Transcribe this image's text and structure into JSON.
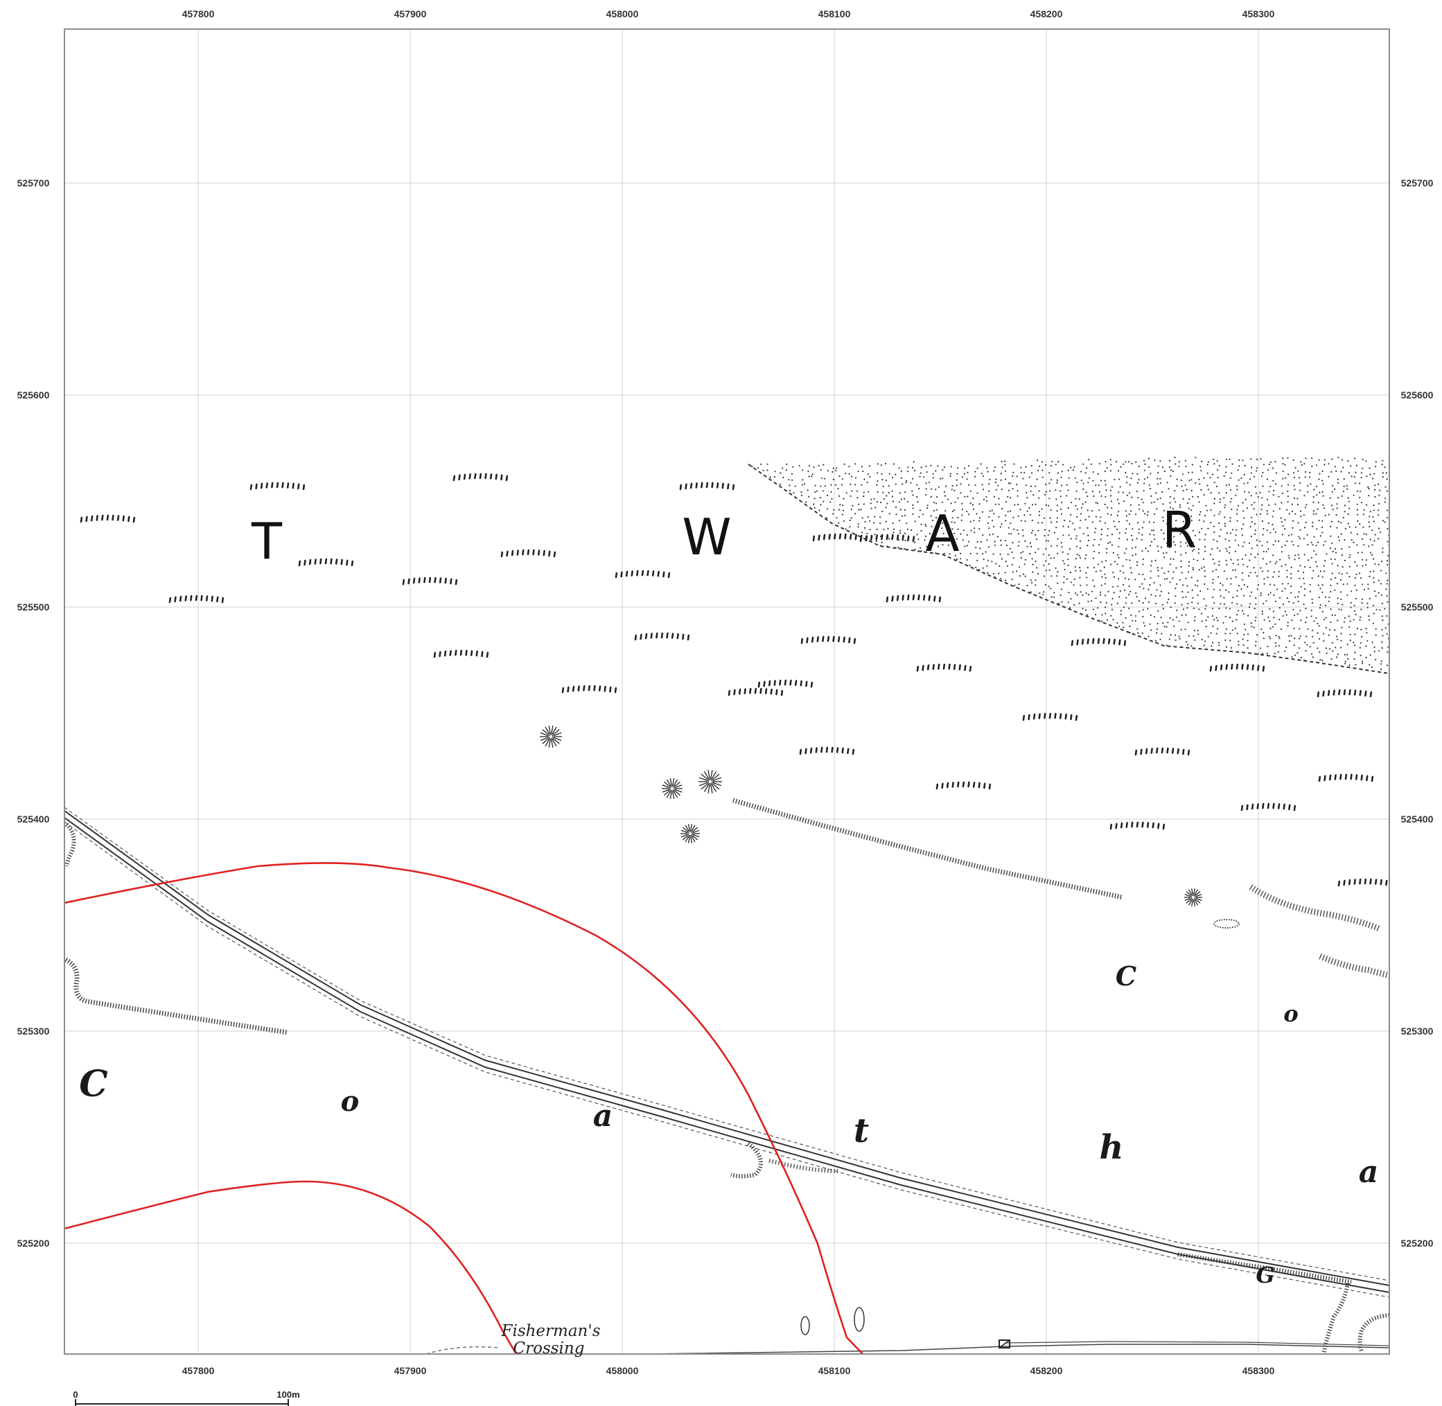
{
  "grid": {
    "easting_ticks": [
      "457800",
      "457900",
      "458000",
      "458100",
      "458200",
      "458300"
    ],
    "northing_ticks": [
      "525700",
      "525600",
      "525500",
      "525400",
      "525300",
      "525200"
    ]
  },
  "labels": {
    "twar": [
      "T",
      "W",
      "A",
      "R"
    ],
    "coatha": [
      "C",
      "o",
      "a",
      "t",
      "h",
      "a"
    ],
    "right_letters": [
      "C",
      "o"
    ],
    "g_letter": "G",
    "place_name_line1": "Fisherman's",
    "place_name_line2": "Crossing"
  },
  "scale_bar": {
    "start_label": "0",
    "end_label": "100m"
  },
  "colors": {
    "boundary": "#e02020",
    "grid": "#d9d9d9",
    "ink": "#222222",
    "frame": "#8c8c8c"
  },
  "symbols": [
    "hachure-marks",
    "rush-tuft-symbols",
    "sand-stipple",
    "railway-line"
  ]
}
